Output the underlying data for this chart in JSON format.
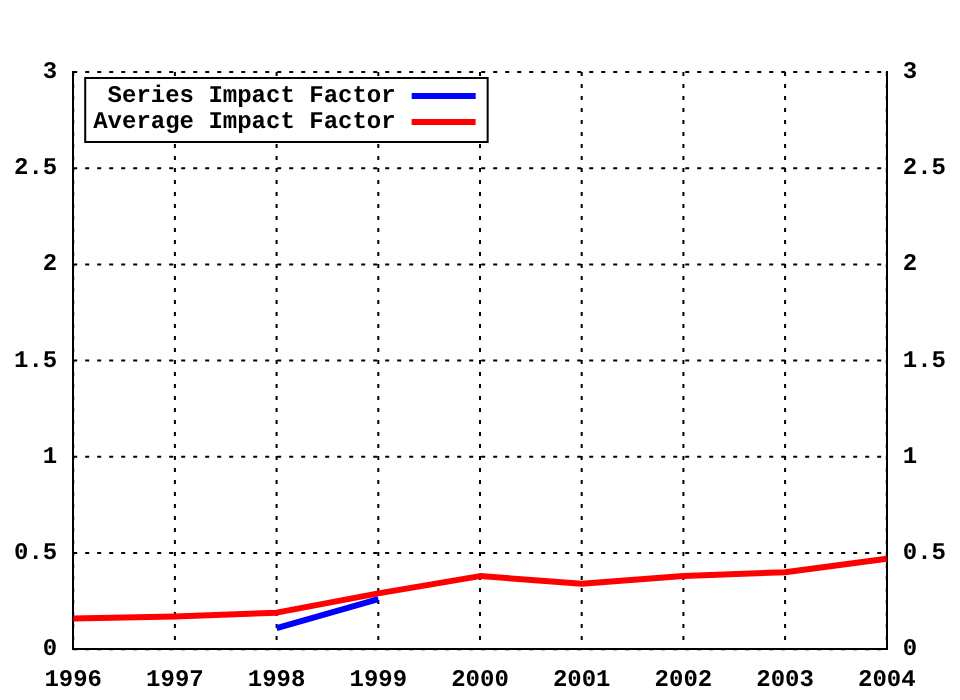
{
  "chart_data": {
    "type": "line",
    "x": [
      1996,
      1997,
      1998,
      1999,
      2000,
      2001,
      2002,
      2003,
      2004
    ],
    "series": [
      {
        "name": "Series Impact Factor",
        "color": "#0000ff",
        "x": [
          1998,
          1999
        ],
        "values": [
          0.11,
          0.26
        ]
      },
      {
        "name": "Average Impact Factor",
        "color": "#ff0000",
        "values": [
          0.16,
          0.17,
          0.19,
          0.29,
          0.38,
          0.34,
          0.38,
          0.4,
          0.47
        ]
      }
    ],
    "xlim": [
      1996,
      2004
    ],
    "xticks": [
      1996,
      1997,
      1998,
      1999,
      2000,
      2001,
      2002,
      2003,
      2004
    ],
    "ylim": [
      0,
      3
    ],
    "yticks": [
      0,
      0.5,
      1,
      1.5,
      2,
      2.5,
      3
    ],
    "y2lim": [
      0,
      3
    ],
    "y2ticks": [
      0,
      0.5,
      1,
      1.5,
      2,
      2.5,
      3
    ],
    "grid": true,
    "legend": "top left",
    "marker": "none",
    "line_style": "solid"
  }
}
